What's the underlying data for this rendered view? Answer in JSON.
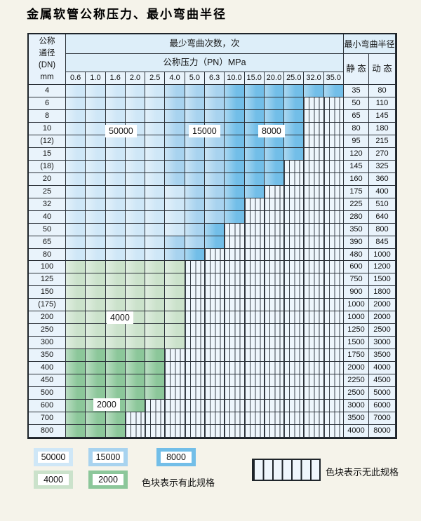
{
  "title": "金属软管公称压力、最小弯曲半径",
  "colors": {
    "blue_50000": "#cfe7f7",
    "blue_15000": "#a8d3ef",
    "blue_8000": "#72bee8",
    "green_4000": "#cbe2cb",
    "green_2000": "#8cc79a",
    "header_bg": "#ddeef9",
    "hatch_bg": "#eef6fc"
  },
  "table": {
    "header": {
      "dn_lines": [
        "公称",
        "通径",
        "(DN)",
        "mm"
      ],
      "cycles_title": "最少弯曲次数，次",
      "pressure_title": "公称压力（PN）MPa",
      "radius_title": "最小弯曲半径",
      "static_label": "静 态",
      "dynamic_label": "动 态",
      "pressures": [
        "0.6",
        "1.0",
        "1.6",
        "2.0",
        "2.5",
        "4.0",
        "5.0",
        "6.3",
        "10.0",
        "15.0",
        "20.0",
        "25.0",
        "32.0",
        "35.0"
      ]
    },
    "cell_legend": {
      "L": "50000",
      "M": "15000",
      "D": "8000",
      "G": "4000",
      "E": "2000",
      "H": "no-spec"
    },
    "rows": [
      {
        "dn": "4",
        "cells": "LLLLLMMMDDDDDD",
        "static": "35",
        "dynamic": "80"
      },
      {
        "dn": "6",
        "cells": "LLLLLMMMDDDDHH",
        "static": "50",
        "dynamic": "110"
      },
      {
        "dn": "8",
        "cells": "LLLLLMMMDDDDHH",
        "static": "65",
        "dynamic": "145"
      },
      {
        "dn": "10",
        "cells": "LLLLLMMMDDDDHH",
        "static": "80",
        "dynamic": "180"
      },
      {
        "dn": "(12)",
        "cells": "LLLLLMMMDDDDHH",
        "static": "95",
        "dynamic": "215"
      },
      {
        "dn": "15",
        "cells": "LLLLLMMMDDDDHH",
        "static": "120",
        "dynamic": "270"
      },
      {
        "dn": "(18)",
        "cells": "LLLLLMMMDDDHHH",
        "static": "145",
        "dynamic": "325"
      },
      {
        "dn": "20",
        "cells": "LLLLLMMMDDDHHH",
        "static": "160",
        "dynamic": "360"
      },
      {
        "dn": "25",
        "cells": "LLLLLLMMDDHHHH",
        "static": "175",
        "dynamic": "400"
      },
      {
        "dn": "32",
        "cells": "LLLLLLMMDHHHHH",
        "static": "225",
        "dynamic": "510"
      },
      {
        "dn": "40",
        "cells": "LLLLLLMMDHHHHH",
        "static": "280",
        "dynamic": "640"
      },
      {
        "dn": "50",
        "cells": "LLLLLLMDHHHHHH",
        "static": "350",
        "dynamic": "800"
      },
      {
        "dn": "65",
        "cells": "LLLLLMMDHHHHHH",
        "static": "390",
        "dynamic": "845"
      },
      {
        "dn": "80",
        "cells": "LLLLLMDHHHHHHH",
        "static": "480",
        "dynamic": "1000"
      },
      {
        "dn": "100",
        "cells": "GGGGGGHHHHHHHH",
        "static": "600",
        "dynamic": "1200"
      },
      {
        "dn": "125",
        "cells": "GGGGGGHHHHHHHH",
        "static": "750",
        "dynamic": "1500"
      },
      {
        "dn": "150",
        "cells": "GGGGGGHHHHHHHH",
        "static": "900",
        "dynamic": "1800"
      },
      {
        "dn": "(175)",
        "cells": "GGGGGGHHHHHHHH",
        "static": "1000",
        "dynamic": "2000"
      },
      {
        "dn": "200",
        "cells": "GGGGGGHHHHHHHH",
        "static": "1000",
        "dynamic": "2000"
      },
      {
        "dn": "250",
        "cells": "GGGGGGHHHHHHHH",
        "static": "1250",
        "dynamic": "2500"
      },
      {
        "dn": "300",
        "cells": "GGGGGGHHHHHHHH",
        "static": "1500",
        "dynamic": "3000"
      },
      {
        "dn": "350",
        "cells": "EEEEEHHHHHHHHH",
        "static": "1750",
        "dynamic": "3500"
      },
      {
        "dn": "400",
        "cells": "EEEEEHHHHHHHHH",
        "static": "2000",
        "dynamic": "4000"
      },
      {
        "dn": "450",
        "cells": "EEEEEHHHHHHHHH",
        "static": "2250",
        "dynamic": "4500"
      },
      {
        "dn": "500",
        "cells": "EEEEEHHHHHHHHH",
        "static": "2500",
        "dynamic": "5000"
      },
      {
        "dn": "600",
        "cells": "EEEEHHHHHHHHHH",
        "static": "3000",
        "dynamic": "6000"
      },
      {
        "dn": "700",
        "cells": "EEEHHHHHHHHHHH",
        "static": "3500",
        "dynamic": "7000"
      },
      {
        "dn": "800",
        "cells": "EEEHHHHHHHHHHH",
        "static": "4000",
        "dynamic": "8000"
      }
    ]
  },
  "overlays": [
    {
      "text": "50000"
    },
    {
      "text": "15000"
    },
    {
      "text": "8000"
    },
    {
      "text": "4000"
    },
    {
      "text": "2000"
    }
  ],
  "legend": {
    "items": [
      {
        "label": "50000"
      },
      {
        "label": "15000"
      },
      {
        "label": "8000"
      },
      {
        "label": "4000"
      },
      {
        "label": "2000"
      }
    ],
    "has_spec_text": "色块表示有此规格",
    "no_spec_text": "色块表示无此规格"
  }
}
